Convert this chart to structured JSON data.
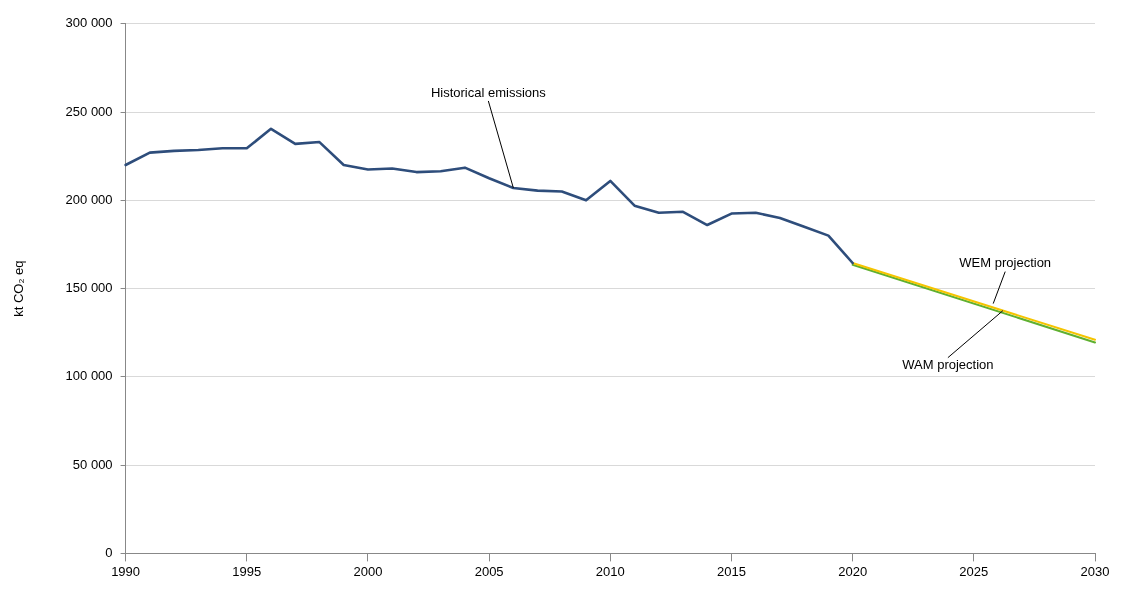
{
  "chart_data": {
    "type": "line",
    "ylabel": "kt CO₂ eq",
    "xlim": [
      1990,
      2030
    ],
    "xticks": [
      1990,
      1995,
      2000,
      2005,
      2010,
      2015,
      2020,
      2025,
      2030
    ],
    "ylim": [
      0,
      300000
    ],
    "yticks": [
      {
        "value": 0,
        "label": "0"
      },
      {
        "value": 50000,
        "label": "50 000"
      },
      {
        "value": 100000,
        "label": "100 000"
      },
      {
        "value": 150000,
        "label": "150 000"
      },
      {
        "value": 200000,
        "label": "200 000"
      },
      {
        "value": 250000,
        "label": "250 000"
      },
      {
        "value": 300000,
        "label": "300 000"
      }
    ],
    "grid": "y",
    "legend": false,
    "marker": "none",
    "line_style": "solid",
    "series": [
      {
        "color": "#2e4d7b",
        "x": [
          1990,
          1991,
          1992,
          1993,
          1994,
          1995,
          1996,
          1997,
          1998,
          1999,
          2000,
          2001,
          2002,
          2003,
          2004,
          2005,
          2006,
          2007,
          2008,
          2009,
          2010,
          2011,
          2012,
          2013,
          2014,
          2015,
          2016,
          2017,
          2018,
          2019,
          2020
        ],
        "values": [
          220000,
          227000,
          228000,
          228500,
          229500,
          229500,
          240500,
          232000,
          233000,
          220000,
          217500,
          218000,
          216000,
          216500,
          218500,
          212500,
          207000,
          205500,
          205000,
          200000,
          211000,
          197000,
          193000,
          193500,
          186000,
          192500,
          193000,
          190000,
          185000,
          180000,
          164500
        ]
      },
      {
        "color": "#f5c400",
        "x": [
          2020,
          2030
        ],
        "values": [
          164500,
          121000
        ]
      },
      {
        "color": "#5fb030",
        "x": [
          2020,
          2030
        ],
        "values": [
          163500,
          119500
        ]
      }
    ],
    "annotations": [
      {
        "text": "Historical emissions",
        "x": 2006,
        "y": 207000
      },
      {
        "text": "WEM projection",
        "x": 2025.8,
        "y": 141500
      },
      {
        "text": "WAM projection",
        "x": 2026.2,
        "y": 137500
      }
    ]
  }
}
